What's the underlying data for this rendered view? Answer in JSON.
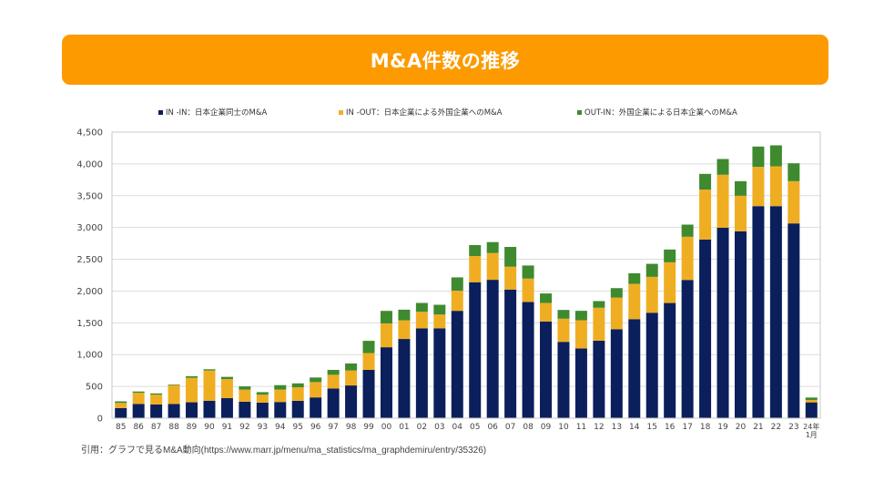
{
  "title": "M&A件数の推移",
  "citation": "引用：グラフで見るM&A動向(https://www.marr.jp/menu/ma_statistics/ma_graphdemiru/entry/35326)",
  "colors": {
    "banner": "#fc9a00",
    "in_in": "#0a1f5c",
    "in_out": "#efae22",
    "out_in": "#3f8a2f"
  },
  "chart_data": {
    "type": "bar",
    "stacked": true,
    "title": "",
    "xlabel": "",
    "ylabel": "",
    "ylim": [
      0,
      4500
    ],
    "yticks": [
      0,
      500,
      1000,
      1500,
      2000,
      2500,
      3000,
      3500,
      4000,
      4500
    ],
    "ytick_labels": [
      "0",
      "500",
      "1,000",
      "1,500",
      "2,000",
      "2,500",
      "3,000",
      "3,500",
      "4,000",
      "4,500"
    ],
    "grid": true,
    "legend_position": "top",
    "categories": [
      "85",
      "86",
      "87",
      "88",
      "89",
      "90",
      "91",
      "92",
      "93",
      "94",
      "95",
      "96",
      "97",
      "98",
      "99",
      "00",
      "01",
      "02",
      "03",
      "04",
      "05",
      "06",
      "07",
      "08",
      "09",
      "10",
      "11",
      "12",
      "13",
      "14",
      "15",
      "16",
      "17",
      "18",
      "19",
      "20",
      "21",
      "22",
      "23",
      "24年\n1月"
    ],
    "series": [
      {
        "name": "IN -IN：日本企業同士のM&A",
        "color": "#0a1f5c",
        "values": [
          160,
          225,
          215,
          225,
          250,
          275,
          315,
          260,
          245,
          255,
          274,
          327,
          467,
          515,
          760,
          1116,
          1246,
          1414,
          1414,
          1689,
          2139,
          2177,
          2024,
          1828,
          1522,
          1201,
          1096,
          1220,
          1400,
          1558,
          1659,
          1812,
          2175,
          2811,
          2997,
          2940,
          3336,
          3336,
          3064,
          249
        ]
      },
      {
        "name": "IN -OUT：日本企業による外国企業へのM&A",
        "color": "#efae22",
        "values": [
          80,
          175,
          155,
          295,
          385,
          475,
          300,
          190,
          125,
          195,
          212,
          241,
          216,
          235,
          265,
          375,
          293,
          260,
          216,
          316,
          411,
          421,
          359,
          368,
          291,
          364,
          445,
          517,
          498,
          555,
          564,
          640,
          679,
          784,
          832,
          559,
          617,
          627,
          664,
          38
        ]
      },
      {
        "name": "OUT-IN：外国企業による日本企業へのM&A",
        "color": "#3f8a2f",
        "values": [
          25,
          20,
          20,
          10,
          25,
          20,
          35,
          50,
          40,
          70,
          62,
          72,
          77,
          111,
          192,
          197,
          168,
          139,
          154,
          210,
          173,
          172,
          311,
          206,
          149,
          138,
          148,
          105,
          148,
          167,
          205,
          201,
          191,
          248,
          248,
          229,
          320,
          329,
          282,
          38
        ]
      }
    ]
  }
}
